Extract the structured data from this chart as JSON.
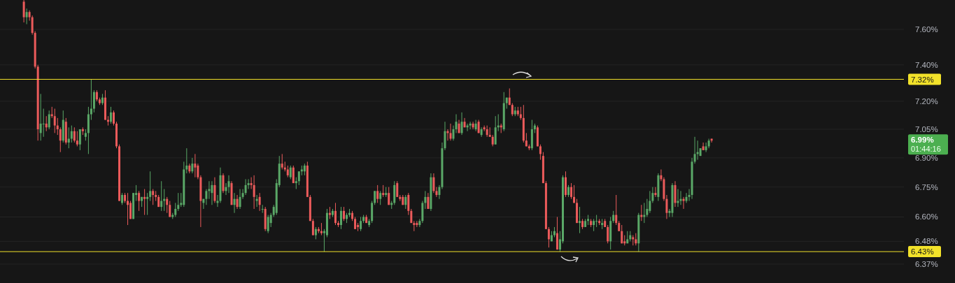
{
  "chart_data": {
    "type": "candlestick",
    "categories": [
      null,
      null,
      null,
      null,
      null,
      null,
      null,
      null,
      null,
      null,
      null,
      null,
      null,
      null,
      null,
      null,
      null,
      null,
      null,
      null,
      null,
      null,
      null,
      null,
      null,
      null,
      null,
      null,
      null,
      null,
      null,
      null,
      null,
      null,
      null,
      null,
      null,
      null,
      null,
      null,
      null,
      null,
      null,
      null,
      null,
      null,
      null,
      null,
      null,
      null,
      null,
      null,
      null,
      null,
      null,
      null,
      null,
      null,
      null,
      null,
      null,
      null,
      null,
      null,
      null,
      null,
      null,
      null,
      null,
      null,
      null,
      null,
      null,
      null,
      null,
      null,
      null,
      null,
      null,
      null,
      null,
      null,
      null,
      null,
      null,
      null,
      null,
      null,
      null,
      null,
      null,
      null,
      null,
      null,
      null,
      null,
      null,
      null,
      null,
      null,
      null,
      null,
      null,
      null,
      null,
      null,
      null,
      null,
      null,
      null,
      null,
      null,
      null,
      null,
      null,
      null,
      null,
      null,
      null,
      null,
      null,
      null,
      null,
      null,
      null,
      null,
      null,
      null,
      null,
      null,
      null,
      null,
      null,
      null,
      null,
      null,
      null,
      null,
      null,
      null,
      null,
      null,
      null,
      null,
      null,
      null,
      null,
      null,
      null,
      null,
      null,
      null,
      null,
      null,
      null,
      null,
      null,
      null,
      null,
      null,
      null,
      null,
      null,
      null,
      null,
      null,
      null,
      null,
      null,
      null,
      null,
      null,
      null,
      null,
      null,
      null,
      null,
      null,
      null,
      null,
      null,
      null,
      null,
      null,
      null,
      null,
      null,
      null,
      null,
      null,
      null,
      null,
      null,
      null,
      null,
      null,
      null,
      null,
      null,
      null,
      null,
      null,
      null,
      null,
      null,
      null,
      null,
      null,
      null,
      null,
      null,
      null,
      null,
      null,
      null,
      null,
      null,
      null,
      null,
      null,
      null,
      null,
      null,
      null,
      null,
      null,
      null,
      null,
      null,
      null,
      null,
      null,
      null,
      null,
      null,
      null,
      null,
      null,
      null,
      null,
      null,
      null,
      null,
      null,
      null,
      null,
      null,
      null,
      null,
      null,
      null,
      null,
      null,
      null,
      null,
      null,
      null,
      null,
      null,
      null,
      null,
      null,
      null,
      null,
      null,
      null,
      null,
      null,
      null,
      null,
      null,
      null,
      null,
      null,
      null,
      null,
      null,
      null,
      null,
      null,
      null,
      null,
      null,
      null,
      null,
      null,
      null,
      null,
      null,
      null,
      null,
      null,
      null,
      null,
      null,
      null,
      null,
      null,
      null,
      null,
      null,
      null,
      null,
      null,
      null,
      null,
      null,
      null,
      null,
      null,
      null,
      null,
      null,
      null,
      null,
      null,
      null,
      null,
      null,
      null,
      null,
      null
    ],
    "ohlc": [
      null,
      null,
      null,
      null,
      null,
      null,
      null,
      null,
      [
        7.76,
        7.77,
        7.64,
        7.67
      ],
      [
        7.67,
        7.72,
        7.63,
        7.7
      ],
      [
        7.7,
        7.71,
        7.65,
        7.67
      ],
      [
        7.67,
        7.68,
        7.57,
        7.58
      ],
      [
        7.58,
        7.59,
        7.38,
        7.39
      ],
      [
        7.39,
        7.4,
        6.99,
        7.05
      ],
      [
        7.03,
        7.24,
        6.99,
        7.08
      ],
      [
        7.08,
        7.16,
        7.01,
        7.08
      ],
      [
        7.08,
        7.12,
        7.04,
        7.06
      ],
      [
        7.06,
        7.15,
        7.05,
        7.13
      ],
      [
        7.13,
        7.17,
        7.11,
        7.12
      ],
      [
        7.12,
        7.16,
        7.03,
        7.07
      ],
      [
        7.07,
        7.11,
        7.02,
        7.05
      ],
      [
        7.05,
        7.06,
        6.93,
        6.99
      ],
      [
        6.99,
        7.15,
        6.98,
        7.1
      ],
      [
        7.09,
        7.11,
        6.97,
        6.98
      ],
      [
        6.98,
        7.06,
        6.95,
        7.0
      ],
      [
        7.0,
        7.07,
        6.98,
        7.04
      ],
      [
        7.04,
        7.06,
        6.98,
        6.99
      ],
      [
        6.99,
        7.04,
        6.96,
        6.97
      ],
      [
        6.97,
        7.05,
        6.94,
        7.05
      ],
      [
        7.05,
        7.06,
        7.02,
        7.04
      ],
      [
        7.01,
        7.05,
        6.99,
        7.03
      ],
      [
        7.03,
        7.17,
        6.92,
        7.13
      ],
      [
        7.13,
        7.32,
        7.1,
        7.16
      ],
      [
        7.16,
        7.26,
        7.14,
        7.25
      ],
      [
        7.25,
        7.26,
        7.2,
        7.21
      ],
      [
        7.21,
        7.22,
        7.18,
        7.19
      ],
      [
        7.19,
        7.24,
        7.18,
        7.22
      ],
      [
        7.22,
        7.26,
        7.1,
        7.1
      ],
      [
        7.1,
        7.12,
        7.07,
        7.09
      ],
      [
        7.09,
        7.17,
        7.08,
        7.14
      ],
      [
        7.14,
        7.15,
        7.07,
        7.08
      ],
      [
        7.08,
        7.09,
        6.95,
        6.96
      ],
      [
        6.96,
        6.97,
        6.68,
        6.68
      ],
      [
        6.67,
        6.72,
        6.66,
        6.71
      ],
      [
        6.71,
        6.72,
        6.67,
        6.68
      ],
      [
        6.68,
        6.72,
        6.56,
        6.66
      ],
      [
        6.67,
        6.68,
        6.59,
        6.59
      ],
      [
        6.59,
        6.72,
        6.59,
        6.72
      ],
      [
        6.71,
        6.76,
        6.68,
        6.72
      ],
      [
        6.72,
        6.73,
        6.63,
        6.68
      ],
      [
        6.68,
        6.7,
        6.65,
        6.7
      ],
      [
        6.7,
        6.74,
        6.61,
        6.69
      ],
      [
        6.69,
        6.72,
        6.61,
        6.7
      ],
      [
        6.7,
        6.83,
        6.68,
        6.73
      ],
      [
        6.73,
        6.74,
        6.66,
        6.71
      ],
      [
        6.71,
        6.73,
        6.68,
        6.7
      ],
      [
        6.7,
        6.71,
        6.65,
        6.65
      ],
      [
        6.65,
        6.78,
        6.63,
        6.68
      ],
      [
        6.68,
        6.74,
        6.63,
        6.69
      ],
      [
        6.69,
        6.7,
        6.62,
        6.66
      ],
      [
        6.66,
        6.68,
        6.6,
        6.6
      ],
      [
        6.6,
        6.62,
        6.59,
        6.61
      ],
      [
        6.61,
        6.67,
        6.6,
        6.64
      ],
      [
        6.64,
        6.72,
        6.63,
        6.66
      ],
      [
        6.66,
        6.72,
        6.65,
        6.67
      ],
      [
        6.66,
        6.88,
        6.65,
        6.84
      ],
      [
        6.84,
        6.95,
        6.82,
        6.86
      ],
      [
        6.86,
        6.87,
        6.82,
        6.83
      ],
      [
        6.83,
        6.9,
        6.82,
        6.87
      ],
      [
        6.87,
        6.92,
        6.8,
        6.85
      ],
      [
        6.86,
        6.87,
        6.79,
        6.8
      ],
      [
        6.8,
        6.81,
        6.55,
        6.68
      ],
      [
        6.67,
        6.69,
        6.64,
        6.69
      ],
      [
        6.69,
        6.74,
        6.66,
        6.73
      ],
      [
        6.73,
        6.78,
        6.69,
        6.74
      ],
      [
        6.72,
        6.78,
        6.66,
        6.76
      ],
      [
        6.76,
        6.8,
        6.67,
        6.68
      ],
      [
        6.67,
        6.71,
        6.65,
        6.68
      ],
      [
        6.68,
        6.85,
        6.67,
        6.81
      ],
      [
        6.81,
        6.82,
        6.72,
        6.73
      ],
      [
        6.73,
        6.77,
        6.71,
        6.75
      ],
      [
        6.75,
        6.81,
        6.72,
        6.78
      ],
      [
        6.77,
        6.78,
        6.66,
        6.66
      ],
      [
        6.66,
        6.72,
        6.62,
        6.69
      ],
      [
        6.69,
        6.71,
        6.64,
        6.65
      ],
      [
        6.65,
        6.74,
        6.64,
        6.7
      ],
      [
        6.7,
        6.74,
        6.69,
        6.72
      ],
      [
        6.72,
        6.79,
        6.71,
        6.76
      ],
      [
        6.76,
        6.79,
        6.74,
        6.77
      ],
      [
        6.77,
        6.8,
        6.74,
        6.76
      ],
      [
        6.76,
        6.81,
        6.64,
        6.7
      ],
      [
        6.68,
        6.71,
        6.65,
        6.69
      ],
      [
        6.7,
        6.72,
        6.63,
        6.66
      ],
      [
        6.64,
        6.66,
        6.62,
        6.64
      ],
      [
        6.64,
        6.65,
        6.53,
        6.54
      ],
      [
        6.53,
        6.61,
        6.52,
        6.6
      ],
      [
        6.57,
        6.62,
        6.55,
        6.61
      ],
      [
        6.61,
        6.66,
        6.6,
        6.65
      ],
      [
        6.62,
        6.79,
        6.61,
        6.77
      ],
      [
        6.76,
        6.91,
        6.75,
        6.87
      ],
      [
        6.87,
        6.92,
        6.84,
        6.85
      ],
      [
        6.85,
        6.88,
        6.83,
        6.84
      ],
      [
        6.84,
        6.86,
        6.8,
        6.81
      ],
      [
        6.8,
        6.86,
        6.79,
        6.85
      ],
      [
        6.85,
        6.86,
        6.77,
        6.77
      ],
      [
        6.77,
        6.8,
        6.74,
        6.78
      ],
      [
        6.78,
        6.83,
        6.76,
        6.83
      ],
      [
        6.83,
        6.86,
        6.81,
        6.84
      ],
      [
        6.83,
        6.87,
        6.81,
        6.86
      ],
      [
        6.86,
        6.88,
        6.7,
        6.7
      ],
      [
        6.7,
        6.71,
        6.58,
        6.58
      ],
      [
        6.58,
        6.59,
        6.51,
        6.51
      ],
      [
        6.51,
        6.55,
        6.49,
        6.54
      ],
      [
        6.54,
        6.55,
        6.52,
        6.53
      ],
      [
        6.53,
        6.57,
        6.51,
        6.52
      ],
      [
        6.52,
        6.54,
        6.43,
        6.53
      ],
      [
        6.51,
        6.64,
        6.5,
        6.62
      ],
      [
        6.62,
        6.65,
        6.59,
        6.61
      ],
      [
        6.61,
        6.64,
        6.6,
        6.63
      ],
      [
        6.63,
        6.67,
        6.56,
        6.57
      ],
      [
        6.57,
        6.58,
        6.55,
        6.56
      ],
      [
        6.56,
        6.65,
        6.54,
        6.63
      ],
      [
        6.63,
        6.65,
        6.58,
        6.59
      ],
      [
        6.59,
        6.62,
        6.57,
        6.61
      ],
      [
        6.61,
        6.64,
        6.6,
        6.62
      ],
      [
        6.62,
        6.63,
        6.58,
        6.59
      ],
      [
        6.59,
        6.6,
        6.54,
        6.54
      ],
      [
        6.56,
        6.57,
        6.53,
        6.55
      ],
      [
        6.54,
        6.6,
        6.53,
        6.58
      ],
      [
        6.58,
        6.61,
        6.57,
        6.6
      ],
      [
        6.6,
        6.61,
        6.57,
        6.57
      ],
      [
        6.56,
        6.59,
        6.55,
        6.58
      ],
      [
        6.58,
        6.68,
        6.57,
        6.67
      ],
      [
        6.67,
        6.73,
        6.66,
        6.73
      ],
      [
        6.73,
        6.76,
        6.67,
        6.69
      ],
      [
        6.69,
        6.73,
        6.66,
        6.72
      ],
      [
        6.72,
        6.76,
        6.7,
        6.71
      ],
      [
        6.71,
        6.75,
        6.7,
        6.72
      ],
      [
        6.72,
        6.75,
        6.66,
        6.66
      ],
      [
        6.66,
        6.68,
        6.64,
        6.67
      ],
      [
        6.67,
        6.78,
        6.66,
        6.76
      ],
      [
        6.77,
        6.78,
        6.7,
        6.7
      ],
      [
        6.7,
        6.71,
        6.68,
        6.69
      ],
      [
        6.7,
        6.71,
        6.66,
        6.66
      ],
      [
        6.66,
        6.71,
        6.64,
        6.7
      ],
      [
        6.71,
        6.72,
        6.61,
        6.63
      ],
      [
        6.63,
        6.64,
        6.57,
        6.57
      ],
      [
        6.57,
        6.58,
        6.53,
        6.56
      ],
      [
        6.57,
        6.58,
        6.55,
        6.56
      ],
      [
        6.56,
        6.59,
        6.55,
        6.58
      ],
      [
        6.58,
        6.68,
        6.57,
        6.67
      ],
      [
        6.67,
        6.73,
        6.64,
        6.7
      ],
      [
        6.7,
        6.72,
        6.64,
        6.64
      ],
      [
        6.64,
        6.82,
        6.63,
        6.8
      ],
      [
        6.8,
        6.82,
        6.72,
        6.73
      ],
      [
        6.73,
        6.75,
        6.7,
        6.71
      ],
      [
        6.71,
        6.76,
        6.69,
        6.75
      ],
      [
        6.75,
        6.98,
        6.74,
        6.95
      ],
      [
        6.95,
        7.09,
        6.94,
        7.04
      ],
      [
        7.04,
        7.05,
        6.99,
        7.03
      ],
      [
        7.03,
        7.08,
        6.99,
        7.0
      ],
      [
        7.0,
        7.07,
        6.99,
        7.05
      ],
      [
        7.05,
        7.13,
        7.03,
        7.09
      ],
      [
        7.08,
        7.1,
        7.03,
        7.03
      ],
      [
        7.03,
        7.14,
        7.02,
        7.09
      ],
      [
        7.09,
        7.11,
        7.06,
        7.06
      ],
      [
        7.06,
        7.08,
        7.04,
        7.07
      ],
      [
        7.07,
        7.09,
        7.05,
        7.08
      ],
      [
        7.08,
        7.09,
        7.05,
        7.06
      ],
      [
        7.05,
        7.1,
        7.04,
        7.08
      ],
      [
        7.09,
        7.1,
        7.03,
        7.03
      ],
      [
        7.02,
        7.06,
        7.01,
        7.05
      ],
      [
        7.06,
        7.07,
        7.04,
        7.05
      ],
      [
        7.05,
        7.07,
        7.01,
        7.02
      ],
      [
        7.02,
        7.06,
        7.01,
        7.01
      ],
      [
        7.01,
        7.02,
        6.96,
        6.97
      ],
      [
        6.97,
        7.12,
        6.97,
        7.06
      ],
      [
        7.06,
        7.13,
        7.04,
        7.07
      ],
      [
        7.07,
        7.08,
        7.03,
        7.06
      ],
      [
        7.05,
        7.25,
        7.04,
        7.19
      ],
      [
        7.19,
        7.22,
        7.16,
        7.22
      ],
      [
        7.22,
        7.27,
        7.18,
        7.18
      ],
      [
        7.18,
        7.19,
        7.12,
        7.13
      ],
      [
        7.13,
        7.17,
        7.12,
        7.15
      ],
      [
        7.15,
        7.17,
        7.12,
        7.13
      ],
      [
        7.13,
        7.17,
        7.1,
        7.11
      ],
      [
        7.11,
        7.18,
        6.98,
        6.99
      ],
      [
        6.99,
        7.03,
        6.96,
        6.96
      ],
      [
        6.96,
        6.97,
        6.94,
        6.95
      ],
      [
        6.95,
        7.1,
        6.94,
        7.05
      ],
      [
        7.05,
        7.08,
        7.03,
        7.07
      ],
      [
        7.06,
        7.07,
        6.96,
        6.96
      ],
      [
        6.96,
        6.97,
        6.89,
        6.92
      ],
      [
        6.91,
        6.93,
        6.77,
        6.77
      ],
      [
        6.77,
        6.78,
        6.54,
        6.54
      ],
      [
        6.54,
        6.55,
        6.45,
        6.49
      ],
      [
        6.48,
        6.53,
        6.48,
        6.51
      ],
      [
        6.51,
        6.55,
        6.5,
        6.53
      ],
      [
        6.52,
        6.6,
        6.44,
        6.44
      ],
      [
        6.44,
        6.53,
        6.43,
        6.49
      ],
      [
        6.48,
        6.81,
        6.47,
        6.8
      ],
      [
        6.8,
        6.83,
        6.7,
        6.71
      ],
      [
        6.71,
        6.76,
        6.7,
        6.75
      ],
      [
        6.75,
        6.77,
        6.69,
        6.7
      ],
      [
        6.7,
        6.76,
        6.67,
        6.67
      ],
      [
        6.67,
        6.69,
        6.57,
        6.57
      ],
      [
        6.57,
        6.65,
        6.52,
        6.58
      ],
      [
        6.58,
        6.59,
        6.54,
        6.55
      ],
      [
        6.55,
        6.59,
        6.55,
        6.58
      ],
      [
        6.58,
        6.61,
        6.56,
        6.59
      ],
      [
        6.58,
        6.59,
        6.55,
        6.56
      ],
      [
        6.56,
        6.59,
        6.53,
        6.58
      ],
      [
        6.58,
        6.61,
        6.55,
        6.58
      ],
      [
        6.58,
        6.59,
        6.56,
        6.57
      ],
      [
        6.56,
        6.59,
        6.54,
        6.57
      ],
      [
        6.58,
        6.59,
        6.55,
        6.55
      ],
      [
        6.55,
        6.56,
        6.47,
        6.48
      ],
      [
        6.48,
        6.6,
        6.44,
        6.58
      ],
      [
        6.58,
        6.63,
        6.57,
        6.61
      ],
      [
        6.61,
        6.71,
        6.56,
        6.57
      ],
      [
        6.57,
        6.58,
        6.53,
        6.53
      ],
      [
        6.53,
        6.56,
        6.47,
        6.47
      ],
      [
        6.48,
        6.51,
        6.46,
        6.47
      ],
      [
        6.47,
        6.53,
        6.47,
        6.49
      ],
      [
        6.49,
        6.53,
        6.48,
        6.51
      ],
      [
        6.5,
        6.51,
        6.46,
        6.49
      ],
      [
        6.49,
        6.52,
        6.46,
        6.47
      ],
      [
        6.47,
        6.62,
        6.43,
        6.61
      ],
      [
        6.61,
        6.66,
        6.58,
        6.6
      ],
      [
        6.6,
        6.67,
        6.57,
        6.61
      ],
      [
        6.61,
        6.69,
        6.6,
        6.64
      ],
      [
        6.63,
        6.73,
        6.62,
        6.68
      ],
      [
        6.68,
        6.75,
        6.67,
        6.72
      ],
      [
        6.72,
        6.75,
        6.7,
        6.71
      ],
      [
        6.7,
        6.82,
        6.68,
        6.81
      ],
      [
        6.81,
        6.84,
        6.78,
        6.79
      ],
      [
        6.79,
        6.8,
        6.68,
        6.69
      ],
      [
        6.69,
        6.71,
        6.59,
        6.62
      ],
      [
        6.62,
        6.64,
        6.6,
        6.63
      ],
      [
        6.62,
        6.77,
        6.6,
        6.76
      ],
      [
        6.76,
        6.78,
        6.65,
        6.67
      ],
      [
        6.67,
        6.74,
        6.65,
        6.68
      ],
      [
        6.68,
        6.73,
        6.66,
        6.69
      ],
      [
        6.69,
        6.7,
        6.64,
        6.68
      ],
      [
        6.68,
        6.72,
        6.67,
        6.7
      ],
      [
        6.7,
        6.74,
        6.68,
        6.71
      ],
      [
        6.71,
        6.9,
        6.69,
        6.88
      ],
      [
        6.88,
        7.01,
        6.87,
        6.92
      ],
      [
        6.92,
        6.99,
        6.89,
        6.93
      ],
      [
        6.91,
        6.95,
        6.91,
        6.95
      ],
      [
        6.96,
        6.98,
        6.94,
        6.94
      ],
      [
        6.94,
        6.98,
        6.93,
        6.96
      ],
      [
        6.96,
        7.0,
        6.95,
        6.99
      ],
      [
        7.0,
        7.0,
        6.98,
        6.99
      ],
      null,
      null,
      null,
      null,
      null,
      null,
      null,
      null,
      null,
      null,
      null,
      null,
      null,
      null,
      null,
      null,
      null,
      null,
      null,
      null,
      null,
      null,
      null,
      null,
      null,
      null,
      null,
      null,
      null,
      null,
      null,
      null,
      null,
      null,
      null,
      null,
      null,
      null,
      null,
      null,
      null,
      null,
      null,
      null,
      null,
      null,
      null,
      null,
      null,
      null,
      null,
      null,
      null,
      null,
      null,
      null,
      null,
      null,
      null,
      null,
      null,
      null,
      null,
      null,
      null,
      null,
      null,
      null
    ],
    "colors": [
      null,
      null,
      null,
      null,
      null,
      null,
      null,
      null,
      "#ec5b5b",
      "#5aa867",
      "#ec5b5b",
      "#ec5b5b",
      "#ec5b5b",
      "#ec5b5b",
      "#5aa867",
      "#5aa867",
      "#ec5b5b",
      "#5aa867",
      "#ec5b5b",
      "#ec5b5b",
      "#ec5b5b",
      "#ec5b5b",
      "#5aa867",
      "#ec5b5b",
      "#5aa867",
      "#5aa867",
      "#ec5b5b",
      "#ec5b5b",
      "#5aa867",
      "#ec5b5b",
      "#5aa867",
      "#5aa867",
      "#5aa867",
      "#5aa867",
      "#ec5b5b",
      "#ec5b5b",
      "#5aa867",
      "#ec5b5b",
      "#ec5b5b",
      "#5aa867",
      "#ec5b5b",
      "#ec5b5b",
      "#ec5b5b",
      "#5aa867",
      "#ec5b5b",
      "#ec5b5b",
      "#ec5b5b",
      "#5aa867",
      "#5aa867",
      "#ec5b5b",
      "#5aa867",
      "#ec5b5b",
      "#5aa867",
      "#5aa867",
      "#ec5b5b",
      "#ec5b5b",
      "#ec5b5b",
      "#5aa867",
      "#5aa867",
      "#ec5b5b",
      "#ec5b5b",
      "#5aa867",
      "#5aa867",
      "#5aa867",
      "#5aa867",
      "#5aa867",
      "#5aa867",
      "#ec5b5b",
      "#5aa867",
      "#ec5b5b",
      "#ec5b5b",
      "#ec5b5b",
      "#5aa867",
      "#5aa867",
      "#5aa867",
      "#5aa867",
      "#ec5b5b",
      "#5aa867",
      "#5aa867",
      "#ec5b5b",
      "#5aa867",
      "#5aa867",
      "#ec5b5b",
      "#5aa867",
      "#ec5b5b",
      "#5aa867",
      "#5aa867",
      "#5aa867",
      "#5aa867",
      "#ec5b5b",
      "#ec5b5b",
      "#5aa867",
      "#ec5b5b",
      "#5aa867",
      "#ec5b5b",
      "#5aa867",
      "#5aa867",
      "#5aa867",
      "#5aa867",
      "#5aa867",
      "#ec5b5b",
      "#ec5b5b",
      "#ec5b5b",
      "#5aa867",
      "#ec5b5b",
      "#5aa867",
      "#5aa867",
      "#5aa867",
      "#5aa867",
      "#ec5b5b",
      "#ec5b5b",
      "#ec5b5b",
      "#5aa867",
      "#ec5b5b",
      "#ec5b5b",
      "#5aa867",
      "#5aa867",
      "#ec5b5b",
      "#5aa867",
      "#ec5b5b",
      "#ec5b5b",
      "#5aa867",
      "#ec5b5b",
      "#5aa867",
      "#5aa867",
      "#ec5b5b",
      "#ec5b5b",
      "#ec5b5b",
      "#5aa867",
      "#5aa867",
      "#ec5b5b",
      "#5aa867",
      "#5aa867",
      "#5aa867",
      "#ec5b5b",
      "#5aa867",
      "#ec5b5b",
      "#5aa867",
      "#ec5b5b",
      "#5aa867",
      "#5aa867",
      "#ec5b5b",
      "#ec5b5b",
      "#ec5b5b",
      "#5aa867",
      "#ec5b5b",
      "#ec5b5b",
      "#ec5b5b",
      "#ec5b5b",
      "#5aa867",
      "#5aa867",
      "#5aa867",
      "#ec5b5b",
      "#5aa867",
      "#ec5b5b",
      "#ec5b5b",
      "#5aa867",
      "#5aa867",
      "#5aa867",
      "#ec5b5b",
      "#ec5b5b",
      "#5aa867",
      "#5aa867",
      "#ec5b5b",
      "#5aa867",
      "#ec5b5b",
      "#5aa867",
      "#5aa867",
      "#ec5b5b",
      "#5aa867",
      "#ec5b5b",
      "#5aa867",
      "#ec5b5b",
      "#ec5b5b",
      "#ec5b5b",
      "#ec5b5b",
      "#5aa867",
      "#5aa867",
      "#ec5b5b",
      "#5aa867",
      "#5aa867",
      "#ec5b5b",
      "#ec5b5b",
      "#5aa867",
      "#ec5b5b",
      "#ec5b5b",
      "#ec5b5b",
      "#ec5b5b",
      "#ec5b5b",
      "#5aa867",
      "#5aa867",
      "#ec5b5b",
      "#ec5b5b",
      "#ec5b5b",
      "#ec5b5b",
      "#ec5b5b",
      "#5aa867",
      "#5aa867",
      "#ec5b5b",
      "#5aa867",
      "#5aa867",
      "#ec5b5b",
      "#5aa867",
      "#ec5b5b",
      "#ec5b5b",
      "#ec5b5b",
      "#5aa867",
      "#ec5b5b",
      "#5aa867",
      "#5aa867",
      "#ec5b5b",
      "#5aa867",
      "#5aa867",
      "#ec5b5b",
      "#5aa867",
      "#ec5b5b",
      "#ec5b5b",
      "#5aa867",
      "#5aa867",
      "#ec5b5b",
      "#ec5b5b",
      "#ec5b5b",
      "#ec5b5b",
      "#5aa867",
      "#5aa867",
      "#ec5b5b",
      "#ec5b5b",
      "#5aa867",
      "#ec5b5b",
      "#5aa867",
      "#5aa867",
      "#5aa867",
      "#5aa867",
      "#ec5b5b",
      "#5aa867",
      "#ec5b5b",
      "#ec5b5b",
      "#ec5b5b",
      "#5aa867",
      "#5aa867",
      "#ec5b5b",
      "#5aa867",
      "#5aa867",
      "#ec5b5b",
      "#5aa867",
      "#5aa867",
      "#5aa867",
      "#5aa867",
      "#5aa867",
      "#5aa867",
      "#ec5b5b",
      "#5aa867",
      "#5aa867",
      "#ec5b5b",
      null,
      null,
      null,
      null,
      null,
      null,
      null,
      null,
      null,
      null,
      null,
      null,
      null,
      null,
      null,
      null,
      null,
      null,
      null,
      null,
      null,
      null,
      null,
      null,
      null,
      null,
      null,
      null,
      null,
      null,
      null,
      null,
      null,
      null,
      null,
      null,
      null,
      null,
      null,
      null,
      null,
      null,
      null,
      null,
      null,
      null,
      null,
      null,
      null,
      null,
      null,
      null,
      null,
      null,
      null,
      null,
      null,
      null,
      null,
      null,
      null,
      null,
      null,
      null,
      null,
      null,
      null,
      null
    ],
    "log": "y",
    "ylim": [
      6.28,
      7.77
    ],
    "yticks": [
      {
        "value": 7.6,
        "label": "7.60%"
      },
      {
        "value": 7.4,
        "label": "7.40%"
      },
      {
        "value": 7.2,
        "label": "7.20%"
      },
      {
        "value": 7.05,
        "label": "7.05%"
      },
      {
        "value": 6.9,
        "label": "6.90%"
      },
      {
        "value": 6.75,
        "label": "6.75%"
      },
      {
        "value": 6.6,
        "label": "6.60%"
      },
      {
        "value": 6.48,
        "label": "6.48%"
      },
      {
        "value": 6.37,
        "label": "6.37%"
      }
    ],
    "tick_labels": "y",
    "grid": "y",
    "ref_lines": [
      {
        "axis": "y",
        "value": 7.32,
        "label": "7.32%",
        "color": "#f2e22a"
      },
      {
        "axis": "y",
        "value": 6.43,
        "label": "6.43%",
        "color": "#f2e22a"
      }
    ],
    "annotations": [
      "6.99%",
      "01:44:16"
    ]
  }
}
